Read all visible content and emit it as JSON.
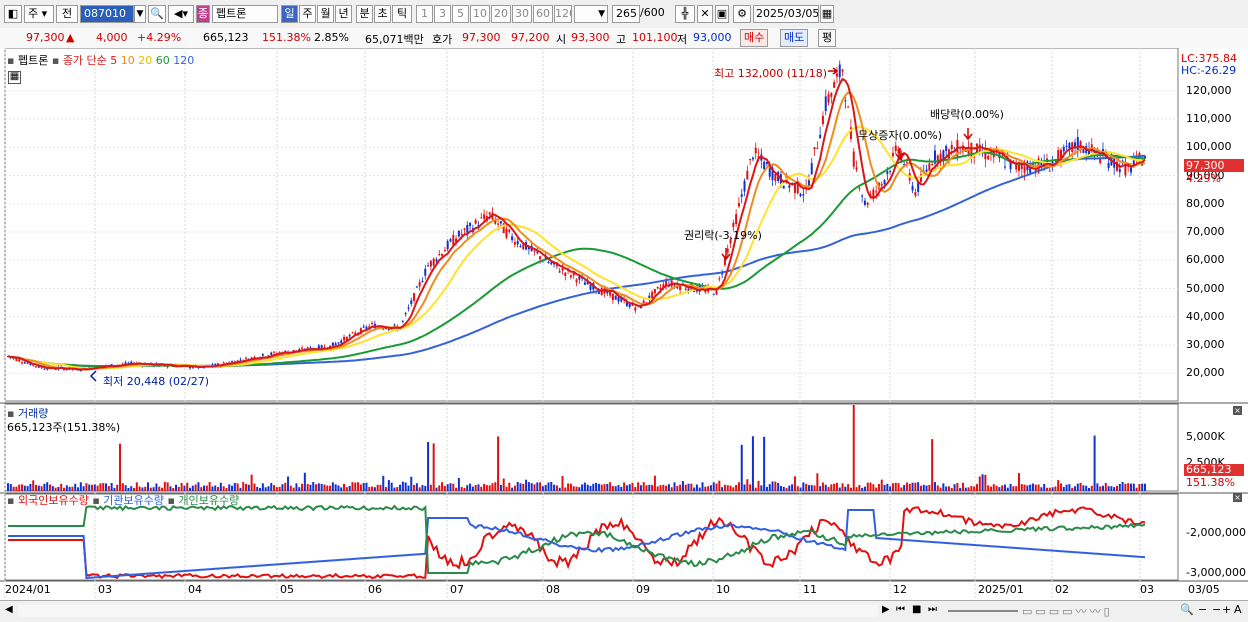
{
  "toolbar": {
    "type_select": "주",
    "prev_label": "전",
    "code_value": "087010",
    "stock_name": "펩트론",
    "periods": [
      "일",
      "주",
      "월",
      "년",
      "분",
      "초",
      "틱"
    ],
    "intervals": [
      "1",
      "3",
      "5",
      "10",
      "20",
      "30",
      "60",
      "120"
    ],
    "count_value": "265",
    "count_total": "/600",
    "date_value": "2025/03/05"
  },
  "quote": {
    "price": "97,300",
    "change_arrow": "▲",
    "change": "4,000",
    "change_pct": "+4.29%",
    "volume": "665,123",
    "volume_ratio": "151.38%",
    "turnover_pct": "2.85%",
    "amount": "65,071백만",
    "hoga_label": "호가",
    "ask": "97,300",
    "bid": "97,200",
    "open_label": "시",
    "open": "93,300",
    "high_label": "고",
    "high": "101,100",
    "low_label": "저",
    "low": "93,000",
    "buy_label": "매수",
    "sell_label": "매도",
    "eval_label": "평"
  },
  "price_panel": {
    "name": "펩트론",
    "ma_label": "종가 단순",
    "ma_periods": [
      "5",
      "10",
      "20",
      "60",
      "120"
    ],
    "ma_colors": [
      "#d81818",
      "#f08c1c",
      "#ffe22c",
      "#1a9a34",
      "#3462d8"
    ],
    "lc_label": "LC:375.84",
    "hc_label": "HC:-26.29",
    "y_ticks": [
      "120,000",
      "110,000",
      "100,000",
      "90,000",
      "80,000",
      "70,000",
      "60,000",
      "50,000",
      "40,000",
      "30,000",
      "20,000"
    ],
    "current_tag": "97,300",
    "current_pct": "4.29%",
    "annotations": {
      "high": "최고 132,000 (11/18)",
      "low": "최저 20,448 (02/27)",
      "rights": "권리락(-3.19%)",
      "bonus": "무상증자(0.00%)",
      "dividend": "배당락(0.00%)"
    }
  },
  "volume_panel": {
    "title": "거래량",
    "value": "665,123주(151.38%)",
    "y_ticks": [
      "5,000K",
      "2,500K"
    ],
    "current_tag": "665,123",
    "current_pct": "151.38%"
  },
  "holdings_panel": {
    "series": [
      "외국인보유수량",
      "기관보유수량",
      "개인보유수량"
    ],
    "colors": [
      "#e01010",
      "#3060e0",
      "#2a8a4a"
    ],
    "y_ticks": [
      "-2,000,000",
      "-3,000,000"
    ]
  },
  "x_axis": {
    "labels": [
      "2024/01",
      "03",
      "04",
      "05",
      "06",
      "07",
      "08",
      "09",
      "10",
      "11",
      "12",
      "2025/01",
      "02",
      "03",
      "03/05"
    ]
  }
}
